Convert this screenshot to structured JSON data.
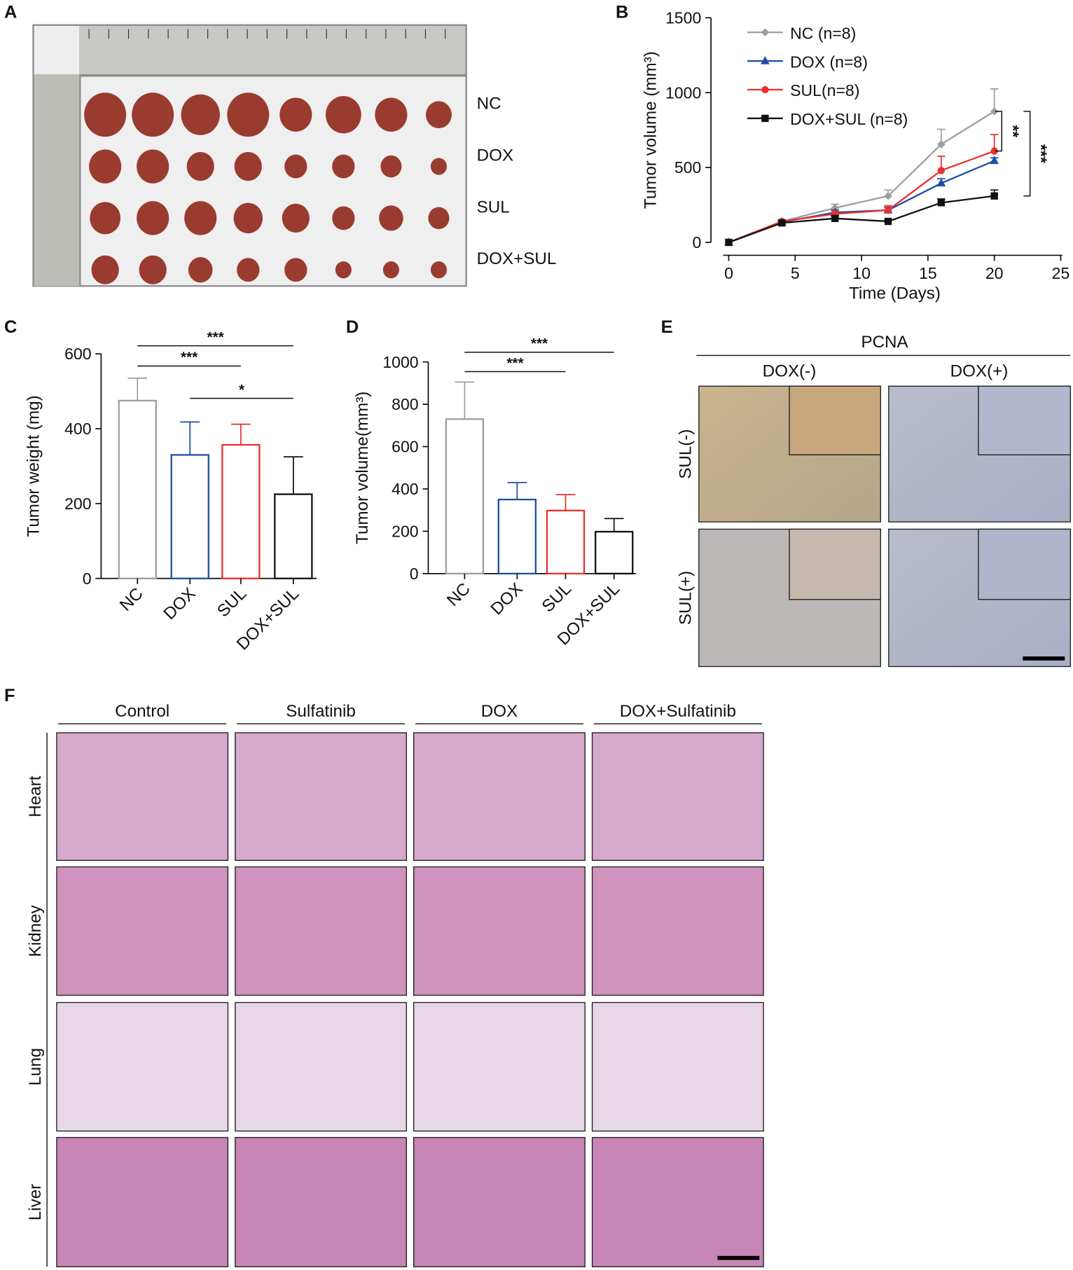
{
  "panel_labels": [
    "A",
    "B",
    "C",
    "D",
    "E",
    "F"
  ],
  "panel_a": {
    "rows": [
      "NC",
      "DOX",
      "SUL",
      "DOX+SUL"
    ]
  },
  "chart_data": [
    {
      "type": "line",
      "xlabel": "Time (Days)",
      "ylabel": "Tumor volume (mm³)",
      "x": [
        0,
        4,
        8,
        12,
        16,
        20
      ],
      "xlim": [
        0,
        25
      ],
      "xticks": [
        0,
        5,
        10,
        15,
        20,
        25
      ],
      "ylim": [
        0,
        1500
      ],
      "yticks": [
        0,
        500,
        1000,
        1500
      ],
      "series": [
        {
          "name": "NC (n=8)",
          "color": "#9e9e9e",
          "marker": "diamond",
          "values": [
            0,
            140,
            230,
            310,
            655,
            875
          ],
          "errors": [
            0,
            10,
            25,
            40,
            100,
            150
          ]
        },
        {
          "name": "DOX (n=8)",
          "color": "#1f4ea3",
          "marker": "triangle",
          "values": [
            0,
            135,
            200,
            215,
            395,
            545
          ],
          "errors": [
            0,
            8,
            15,
            20,
            30,
            20
          ]
        },
        {
          "name": "SUL(n=8)",
          "color": "#e8312f",
          "marker": "circle",
          "values": [
            0,
            140,
            190,
            215,
            480,
            610
          ],
          "errors": [
            0,
            10,
            20,
            30,
            95,
            110
          ]
        },
        {
          "name": "DOX+SUL (n=8)",
          "color": "#111111",
          "marker": "square",
          "values": [
            0,
            130,
            160,
            140,
            265,
            310
          ],
          "errors": [
            0,
            10,
            15,
            10,
            25,
            40
          ]
        }
      ],
      "significance": [
        {
          "label": "**",
          "between": [
            "NC (n=8)",
            "SUL(n=8)"
          ]
        },
        {
          "label": "***",
          "between": [
            "NC (n=8)",
            "DOX+SUL (n=8)"
          ]
        }
      ]
    },
    {
      "type": "bar",
      "ylabel": "Tumor weight (mg)",
      "categories": [
        "NC",
        "DOX",
        "SUL",
        "DOX+SUL"
      ],
      "values": [
        475,
        330,
        357,
        225
      ],
      "errors": [
        60,
        88,
        55,
        100
      ],
      "colors": [
        "#9e9e9e",
        "#1f4ea3",
        "#e8312f",
        "#111111"
      ],
      "ylim": [
        0,
        600
      ],
      "yticks": [
        0,
        200,
        400,
        600
      ],
      "significance": [
        {
          "label": "***",
          "between": [
            "NC",
            "DOX+SUL"
          ]
        },
        {
          "label": "***",
          "between": [
            "NC",
            "SUL"
          ]
        },
        {
          "label": "*",
          "between": [
            "DOX",
            "DOX+SUL"
          ]
        }
      ]
    },
    {
      "type": "bar",
      "ylabel": "Tumor volume(mm³)",
      "categories": [
        "NC",
        "DOX",
        "SUL",
        "DOX+SUL"
      ],
      "values": [
        730,
        350,
        298,
        198
      ],
      "errors": [
        175,
        80,
        75,
        62
      ],
      "colors": [
        "#9e9e9e",
        "#1f4ea3",
        "#e8312f",
        "#111111"
      ],
      "ylim": [
        0,
        1000
      ],
      "yticks": [
        0,
        200,
        400,
        600,
        800,
        1000
      ],
      "significance": [
        {
          "label": "***",
          "between": [
            "NC",
            "DOX+SUL"
          ]
        },
        {
          "label": "***",
          "between": [
            "NC",
            "SUL"
          ]
        }
      ]
    }
  ],
  "panel_e": {
    "title": "PCNA",
    "columns": [
      "DOX(-)",
      "DOX(+)"
    ],
    "rows": [
      "SUL(-)",
      "SUL(+)"
    ]
  },
  "panel_f": {
    "columns": [
      "Control",
      "Sulfatinib",
      "DOX",
      "DOX+Sulfatinib"
    ],
    "rows": [
      "Heart",
      "Kidney",
      "Lung",
      "Liver"
    ]
  }
}
